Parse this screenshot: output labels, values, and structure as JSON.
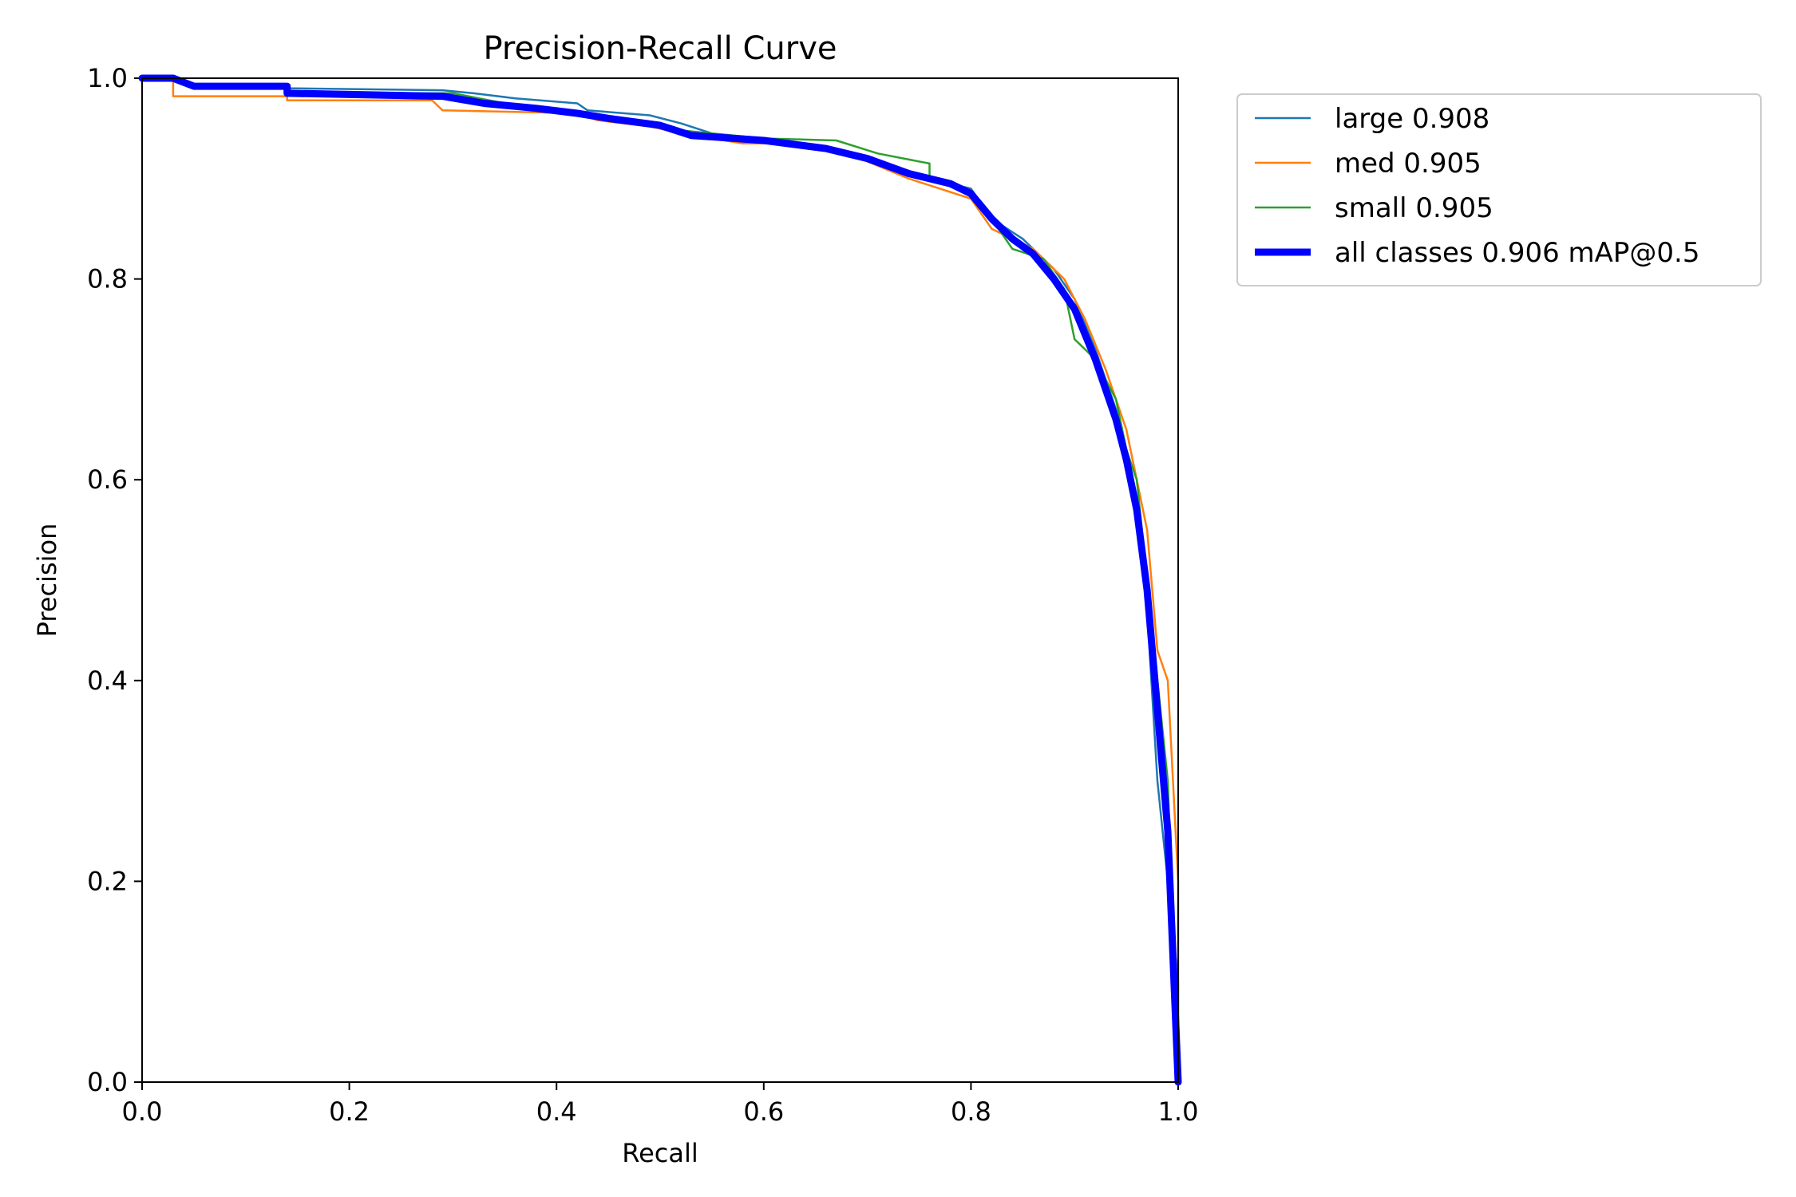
{
  "chart_data": {
    "type": "line",
    "title": "Precision-Recall Curve",
    "xlabel": "Recall",
    "ylabel": "Precision",
    "xlim": [
      0.0,
      1.0
    ],
    "ylim": [
      0.0,
      1.0
    ],
    "x_ticks": [
      "0.0",
      "0.2",
      "0.4",
      "0.6",
      "0.8",
      "1.0"
    ],
    "y_ticks": [
      "0.0",
      "0.2",
      "0.4",
      "0.6",
      "0.8",
      "1.0"
    ],
    "grid": false,
    "legend_position": "outside-top-right",
    "series": [
      {
        "name": "large 0.908",
        "color": "#1f77b4",
        "emphasis": "thin",
        "x": [
          0.0,
          0.03,
          0.05,
          0.14,
          0.14,
          0.29,
          0.32,
          0.36,
          0.42,
          0.43,
          0.49,
          0.52,
          0.55,
          0.6,
          0.66,
          0.7,
          0.74,
          0.78,
          0.8,
          0.82,
          0.85,
          0.88,
          0.9,
          0.92,
          0.94,
          0.96,
          0.97,
          0.98,
          1.0,
          1.0
        ],
        "y": [
          1.0,
          1.0,
          0.993,
          0.993,
          0.99,
          0.988,
          0.985,
          0.98,
          0.975,
          0.968,
          0.963,
          0.955,
          0.945,
          0.94,
          0.93,
          0.92,
          0.905,
          0.895,
          0.89,
          0.86,
          0.84,
          0.81,
          0.78,
          0.73,
          0.67,
          0.58,
          0.47,
          0.3,
          0.1,
          0.0
        ]
      },
      {
        "name": "med 0.905",
        "color": "#ff7f0e",
        "emphasis": "thin",
        "x": [
          0.0,
          0.03,
          0.03,
          0.14,
          0.14,
          0.28,
          0.29,
          0.38,
          0.42,
          0.44,
          0.49,
          0.52,
          0.55,
          0.58,
          0.63,
          0.67,
          0.74,
          0.77,
          0.8,
          0.82,
          0.86,
          0.89,
          0.91,
          0.93,
          0.95,
          0.97,
          0.98,
          0.99,
          1.0,
          1.0
        ],
        "y": [
          1.0,
          1.0,
          0.982,
          0.982,
          0.978,
          0.978,
          0.968,
          0.966,
          0.965,
          0.958,
          0.952,
          0.945,
          0.94,
          0.935,
          0.935,
          0.93,
          0.9,
          0.89,
          0.88,
          0.85,
          0.83,
          0.8,
          0.76,
          0.71,
          0.65,
          0.55,
          0.43,
          0.4,
          0.2,
          0.0
        ]
      },
      {
        "name": "small 0.905",
        "color": "#2ca02c",
        "emphasis": "thin",
        "x": [
          0.0,
          0.03,
          0.05,
          0.14,
          0.14,
          0.3,
          0.35,
          0.41,
          0.46,
          0.5,
          0.52,
          0.55,
          0.6,
          0.67,
          0.71,
          0.76,
          0.76,
          0.8,
          0.82,
          0.84,
          0.87,
          0.89,
          0.9,
          0.92,
          0.94,
          0.95,
          0.96,
          0.97,
          0.99,
          1.0
        ],
        "y": [
          1.0,
          1.0,
          0.992,
          0.992,
          0.985,
          0.985,
          0.975,
          0.965,
          0.96,
          0.955,
          0.948,
          0.945,
          0.94,
          0.938,
          0.925,
          0.915,
          0.9,
          0.885,
          0.86,
          0.83,
          0.82,
          0.79,
          0.74,
          0.72,
          0.68,
          0.63,
          0.6,
          0.5,
          0.3,
          0.0
        ]
      },
      {
        "name": "all classes 0.906 mAP@0.5",
        "color": "#0000ff",
        "emphasis": "bold",
        "x": [
          0.0,
          0.03,
          0.05,
          0.14,
          0.14,
          0.29,
          0.33,
          0.38,
          0.42,
          0.45,
          0.5,
          0.53,
          0.6,
          0.66,
          0.7,
          0.74,
          0.78,
          0.8,
          0.82,
          0.84,
          0.86,
          0.88,
          0.9,
          0.92,
          0.94,
          0.95,
          0.96,
          0.97,
          0.99,
          1.0
        ],
        "y": [
          1.0,
          1.0,
          0.992,
          0.992,
          0.985,
          0.982,
          0.975,
          0.97,
          0.965,
          0.96,
          0.953,
          0.943,
          0.938,
          0.93,
          0.92,
          0.905,
          0.895,
          0.885,
          0.86,
          0.84,
          0.825,
          0.8,
          0.77,
          0.72,
          0.66,
          0.62,
          0.57,
          0.49,
          0.25,
          0.0
        ]
      }
    ]
  }
}
